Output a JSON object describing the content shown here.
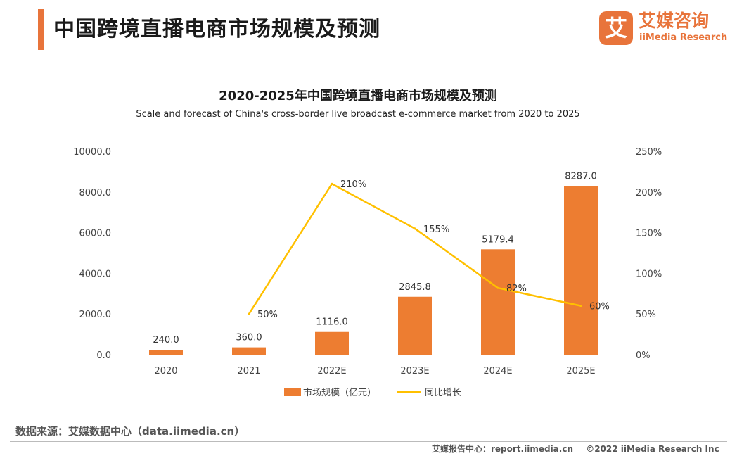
{
  "header": {
    "title": "中国跨境直播电商市场规模及预测",
    "logo_mark": "艾",
    "logo_cn": "艾媒咨询",
    "logo_en": "iiMedia Research",
    "accent_color": "#e8743b"
  },
  "chart_data": {
    "type": "bar",
    "title": "2020-2025年中国跨境直播电商市场规模及预测",
    "subtitle": "Scale and forecast of China's cross-border live broadcast e-commerce market from 2020 to 2025",
    "categories": [
      "2020",
      "2021",
      "2022E",
      "2023E",
      "2024E",
      "2025E"
    ],
    "series": [
      {
        "name": "市场规模（亿元）",
        "type": "bar",
        "axis": "left",
        "color": "#ed7d31",
        "values": [
          240.0,
          360.0,
          1116.0,
          2845.8,
          5179.4,
          8287.0
        ],
        "labels": [
          "240.0",
          "360.0",
          "1116.0",
          "2845.8",
          "5179.4",
          "8287.0"
        ]
      },
      {
        "name": "同比增长",
        "type": "line",
        "axis": "right",
        "color": "#ffc000",
        "values": [
          null,
          50,
          210,
          155,
          82,
          60
        ],
        "labels": [
          "",
          "50%",
          "210%",
          "155%",
          "82%",
          "60%"
        ]
      }
    ],
    "y_left": {
      "ylim": [
        0,
        10000
      ],
      "ticks": [
        "0.0",
        "2000.0",
        "4000.0",
        "6000.0",
        "8000.0",
        "10000.0"
      ]
    },
    "y_right": {
      "ylim": [
        0,
        250
      ],
      "ticks": [
        "0%",
        "50%",
        "100%",
        "150%",
        "200%",
        "250%"
      ]
    },
    "grid": false,
    "legend": "bottom-center"
  },
  "footer": {
    "source": "数据来源：艾媒数据中心（data.iimedia.cn）",
    "report": "艾媒报告中心：report.iimedia.cn",
    "copyright": "©2022  iiMedia Research  Inc"
  }
}
